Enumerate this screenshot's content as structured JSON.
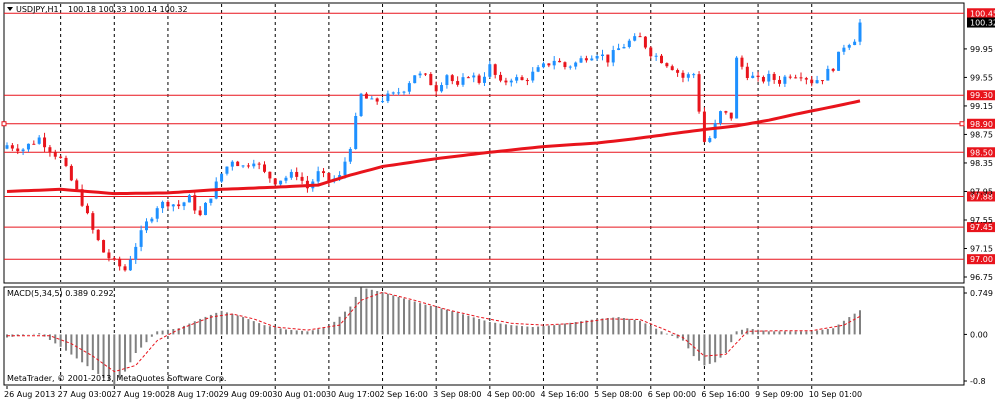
{
  "window_title": "USDJPY,H1",
  "chart_data": {
    "type": "candlestick",
    "title": "USDJPY,H1  100.18 100.33 100.14 100.32",
    "symbol": "USDJPY,H1",
    "ohlc_header": "100.18 100.33 100.14 100.32",
    "last_price": 100.32,
    "ylim": [
      96.68,
      100.58
    ],
    "y_ticks": [
      "99.95",
      "99.55",
      "99.15",
      "98.75",
      "98.35",
      "97.95",
      "97.55",
      "97.15",
      "96.75"
    ],
    "x_ticks": [
      "26 Aug 2013",
      "27 Aug 03:00",
      "27 Aug 19:00",
      "28 Aug 17:00",
      "29 Aug 09:00",
      "30 Aug 01:00",
      "30 Aug 17:00",
      "2 Sep 16:00",
      "3 Sep 08:00",
      "4 Sep 00:00",
      "4 Sep 16:00",
      "5 Sep 08:00",
      "6 Sep 00:00",
      "6 Sep 16:00",
      "9 Sep 09:00",
      "10 Sep 01:00"
    ],
    "x_tick_index": [
      0,
      10,
      20,
      30,
      40,
      50,
      60,
      70,
      80,
      90,
      100,
      110,
      120,
      130,
      140,
      150
    ],
    "n_bars": 160,
    "hlines": [
      {
        "label": "100.45",
        "value": 100.45
      },
      {
        "label": "99.30",
        "value": 99.3
      },
      {
        "label": "98.90",
        "value": 98.9
      },
      {
        "label": "98.50",
        "value": 98.5
      },
      {
        "label": "97.88",
        "value": 97.88
      },
      {
        "label": "97.45",
        "value": 97.45
      },
      {
        "label": "97.00",
        "value": 97.0
      }
    ],
    "close_path": [
      [
        0,
        98.6
      ],
      [
        3,
        98.55
      ],
      [
        6,
        98.7
      ],
      [
        8,
        98.55
      ],
      [
        10,
        98.4
      ],
      [
        12,
        98.1
      ],
      [
        14,
        97.8
      ],
      [
        16,
        97.4
      ],
      [
        18,
        97.1
      ],
      [
        20,
        96.95
      ],
      [
        22,
        96.85
      ],
      [
        24,
        97.2
      ],
      [
        26,
        97.5
      ],
      [
        28,
        97.75
      ],
      [
        30,
        97.8
      ],
      [
        32,
        97.75
      ],
      [
        34,
        97.85
      ],
      [
        36,
        97.6
      ],
      [
        38,
        97.9
      ],
      [
        40,
        98.2
      ],
      [
        42,
        98.4
      ],
      [
        44,
        98.3
      ],
      [
        46,
        98.4
      ],
      [
        48,
        98.2
      ],
      [
        50,
        98.1
      ],
      [
        52,
        98.15
      ],
      [
        54,
        98.2
      ],
      [
        56,
        98.0
      ],
      [
        58,
        98.2
      ],
      [
        60,
        98.1
      ],
      [
        62,
        98.15
      ],
      [
        64,
        98.6
      ],
      [
        66,
        99.3
      ],
      [
        68,
        99.2
      ],
      [
        70,
        99.25
      ],
      [
        72,
        99.3
      ],
      [
        74,
        99.4
      ],
      [
        76,
        99.6
      ],
      [
        78,
        99.55
      ],
      [
        80,
        99.4
      ],
      [
        82,
        99.6
      ],
      [
        84,
        99.4
      ],
      [
        86,
        99.6
      ],
      [
        88,
        99.5
      ],
      [
        90,
        99.7
      ],
      [
        92,
        99.45
      ],
      [
        94,
        99.55
      ],
      [
        96,
        99.5
      ],
      [
        98,
        99.6
      ],
      [
        100,
        99.7
      ],
      [
        102,
        99.8
      ],
      [
        104,
        99.7
      ],
      [
        106,
        99.75
      ],
      [
        108,
        99.85
      ],
      [
        110,
        99.9
      ],
      [
        112,
        99.8
      ],
      [
        114,
        99.95
      ],
      [
        116,
        100.05
      ],
      [
        118,
        100.1
      ],
      [
        120,
        99.9
      ],
      [
        122,
        99.8
      ],
      [
        124,
        99.7
      ],
      [
        126,
        99.55
      ],
      [
        128,
        99.6
      ],
      [
        129,
        99.1
      ],
      [
        130,
        98.65
      ],
      [
        131,
        98.7
      ],
      [
        133,
        99.05
      ],
      [
        135,
        99.0
      ],
      [
        136,
        99.8
      ],
      [
        138,
        99.6
      ],
      [
        140,
        99.5
      ],
      [
        142,
        99.55
      ],
      [
        144,
        99.5
      ],
      [
        146,
        99.6
      ],
      [
        148,
        99.6
      ],
      [
        150,
        99.5
      ],
      [
        152,
        99.55
      ],
      [
        154,
        99.7
      ],
      [
        156,
        100.0
      ],
      [
        158,
        100.1
      ],
      [
        159,
        100.32
      ]
    ],
    "ma_path": [
      [
        0,
        97.95
      ],
      [
        10,
        97.98
      ],
      [
        20,
        97.92
      ],
      [
        30,
        97.93
      ],
      [
        40,
        97.98
      ],
      [
        50,
        98.01
      ],
      [
        58,
        98.04
      ],
      [
        64,
        98.18
      ],
      [
        70,
        98.3
      ],
      [
        80,
        98.41
      ],
      [
        90,
        98.5
      ],
      [
        100,
        98.58
      ],
      [
        110,
        98.63
      ],
      [
        116,
        98.68
      ],
      [
        124,
        98.76
      ],
      [
        130,
        98.82
      ],
      [
        136,
        98.87
      ],
      [
        142,
        98.95
      ],
      [
        148,
        99.05
      ],
      [
        154,
        99.14
      ],
      [
        159,
        99.22
      ]
    ],
    "macd": {
      "label": "MACD(5,34,5) 0.389 0.292",
      "ylim": [
        -0.8,
        0.749
      ],
      "y_ticks": [
        "0.749",
        "0.00",
        "-0.8"
      ],
      "hist_path": [
        [
          0,
          -0.05
        ],
        [
          6,
          0.02
        ],
        [
          10,
          -0.2
        ],
        [
          14,
          -0.45
        ],
        [
          18,
          -0.7
        ],
        [
          20,
          -0.8
        ],
        [
          22,
          -0.6
        ],
        [
          24,
          -0.3
        ],
        [
          28,
          0.05
        ],
        [
          32,
          0.1
        ],
        [
          36,
          0.25
        ],
        [
          40,
          0.38
        ],
        [
          44,
          0.28
        ],
        [
          48,
          0.15
        ],
        [
          52,
          0.08
        ],
        [
          56,
          0.05
        ],
        [
          60,
          0.12
        ],
        [
          64,
          0.45
        ],
        [
          66,
          0.76
        ],
        [
          70,
          0.68
        ],
        [
          74,
          0.58
        ],
        [
          78,
          0.48
        ],
        [
          82,
          0.4
        ],
        [
          86,
          0.3
        ],
        [
          90,
          0.2
        ],
        [
          94,
          0.15
        ],
        [
          98,
          0.12
        ],
        [
          102,
          0.15
        ],
        [
          106,
          0.2
        ],
        [
          110,
          0.25
        ],
        [
          114,
          0.28
        ],
        [
          118,
          0.22
        ],
        [
          122,
          0.05
        ],
        [
          126,
          -0.1
        ],
        [
          128,
          -0.35
        ],
        [
          130,
          -0.5
        ],
        [
          132,
          -0.45
        ],
        [
          134,
          -0.3
        ],
        [
          136,
          0.05
        ],
        [
          138,
          0.1
        ],
        [
          142,
          0.05
        ],
        [
          146,
          0.05
        ],
        [
          150,
          0.05
        ],
        [
          154,
          0.1
        ],
        [
          157,
          0.28
        ],
        [
          159,
          0.39
        ]
      ],
      "signal_path": [
        [
          0,
          -0.02
        ],
        [
          8,
          -0.02
        ],
        [
          12,
          -0.15
        ],
        [
          16,
          -0.35
        ],
        [
          20,
          -0.6
        ],
        [
          24,
          -0.5
        ],
        [
          28,
          -0.1
        ],
        [
          32,
          0.08
        ],
        [
          38,
          0.28
        ],
        [
          42,
          0.33
        ],
        [
          46,
          0.25
        ],
        [
          50,
          0.12
        ],
        [
          56,
          0.07
        ],
        [
          62,
          0.15
        ],
        [
          66,
          0.55
        ],
        [
          70,
          0.68
        ],
        [
          76,
          0.55
        ],
        [
          82,
          0.4
        ],
        [
          88,
          0.28
        ],
        [
          94,
          0.18
        ],
        [
          100,
          0.15
        ],
        [
          106,
          0.18
        ],
        [
          112,
          0.25
        ],
        [
          118,
          0.24
        ],
        [
          122,
          0.1
        ],
        [
          126,
          -0.05
        ],
        [
          130,
          -0.35
        ],
        [
          134,
          -0.32
        ],
        [
          138,
          0.05
        ],
        [
          144,
          0.06
        ],
        [
          150,
          0.06
        ],
        [
          156,
          0.15
        ],
        [
          159,
          0.29
        ]
      ]
    }
  },
  "copyright": "MetaTrader, © 2001-2013, MetaQuotes Software Corp.",
  "colors": {
    "up": "#1e90ff",
    "down": "#e8141c",
    "ma": "#e8141c",
    "hline": "#e8141c",
    "grid": "#000000",
    "hist": "#808080",
    "signal": "#e8141c",
    "price_box": "#000000"
  }
}
